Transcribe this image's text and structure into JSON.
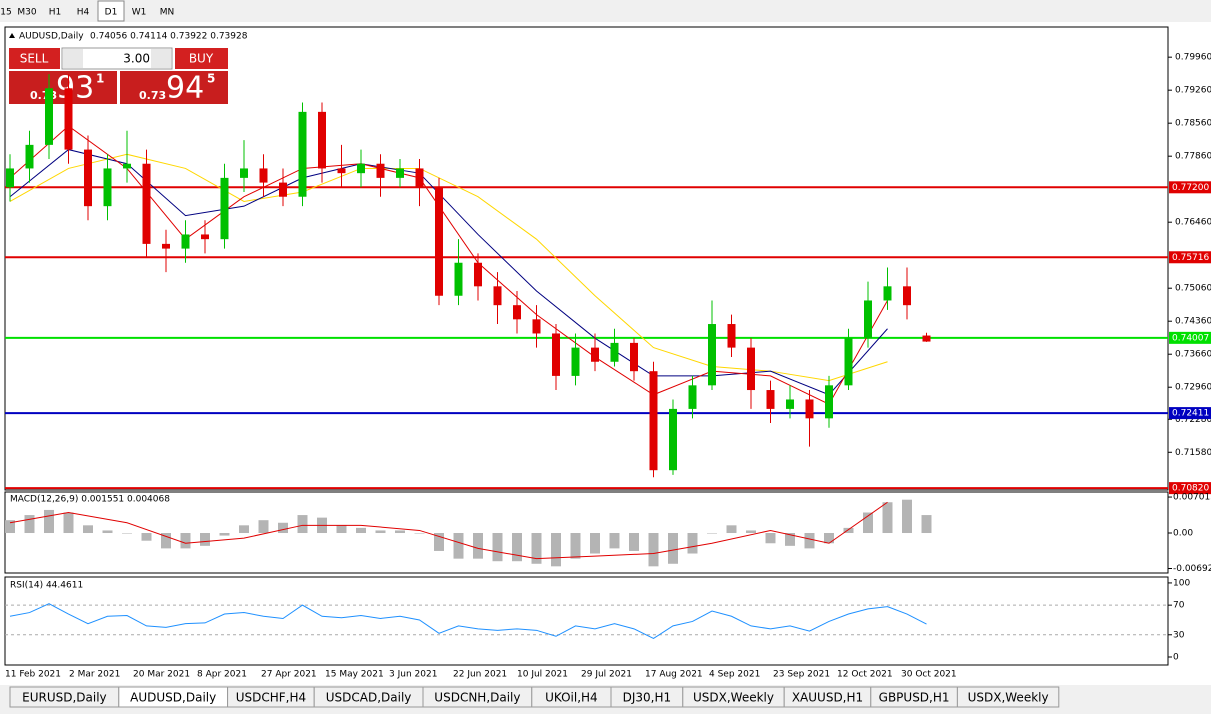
{
  "toolbar": {
    "timeframes": [
      "15",
      "M30",
      "H1",
      "H4",
      "D1",
      "W1",
      "MN"
    ],
    "active_timeframe": 4
  },
  "trade_panel": {
    "sell": "SELL",
    "buy": "BUY",
    "volume": "3.00",
    "bid": {
      "prefix": "0.73",
      "big": "93",
      "small": "1"
    },
    "ask": {
      "prefix": "0.73",
      "big": "94",
      "small": "5"
    }
  },
  "chart_data": {
    "type": "candlestick",
    "symbol": "AUDUSD,Daily",
    "ohlc_text": "0.74056 0.74114 0.73922 0.73928",
    "open": [
      0.772,
      0.776,
      0.781,
      0.793,
      0.78,
      0.768,
      0.776,
      0.777,
      0.76,
      0.759,
      0.762,
      0.761,
      0.774,
      0.776,
      0.773,
      0.77,
      0.788,
      0.776,
      0.775,
      0.777,
      0.774,
      0.776,
      0.772,
      0.749,
      0.756,
      0.751,
      0.747,
      0.744,
      0.741,
      0.732,
      0.738,
      0.735,
      0.739,
      0.733,
      0.712,
      0.725,
      0.73,
      0.743,
      0.738,
      0.729,
      0.725,
      0.727,
      0.723,
      0.73,
      0.74,
      0.748,
      0.751,
      0.74056
    ],
    "high": [
      0.779,
      0.784,
      0.796,
      0.796,
      0.783,
      0.779,
      0.784,
      0.78,
      0.763,
      0.765,
      0.765,
      0.777,
      0.782,
      0.779,
      0.776,
      0.79,
      0.79,
      0.781,
      0.78,
      0.779,
      0.778,
      0.778,
      0.774,
      0.761,
      0.758,
      0.754,
      0.75,
      0.747,
      0.743,
      0.741,
      0.741,
      0.742,
      0.74,
      0.735,
      0.727,
      0.732,
      0.748,
      0.745,
      0.74,
      0.731,
      0.73,
      0.729,
      0.732,
      0.742,
      0.752,
      0.755,
      0.755,
      0.74114
    ],
    "low": [
      0.769,
      0.773,
      0.778,
      0.777,
      0.765,
      0.765,
      0.773,
      0.757,
      0.754,
      0.756,
      0.758,
      0.759,
      0.771,
      0.77,
      0.768,
      0.768,
      0.773,
      0.772,
      0.772,
      0.77,
      0.772,
      0.768,
      0.747,
      0.747,
      0.748,
      0.743,
      0.741,
      0.738,
      0.729,
      0.73,
      0.733,
      0.734,
      0.731,
      0.7105,
      0.711,
      0.723,
      0.729,
      0.736,
      0.725,
      0.722,
      0.723,
      0.717,
      0.721,
      0.729,
      0.738,
      0.746,
      0.744,
      0.73922
    ],
    "close": [
      0.776,
      0.781,
      0.793,
      0.78,
      0.768,
      0.776,
      0.777,
      0.76,
      0.759,
      0.762,
      0.761,
      0.774,
      0.776,
      0.773,
      0.77,
      0.788,
      0.776,
      0.775,
      0.777,
      0.774,
      0.776,
      0.772,
      0.749,
      0.756,
      0.751,
      0.747,
      0.744,
      0.741,
      0.732,
      0.738,
      0.735,
      0.739,
      0.733,
      0.712,
      0.725,
      0.73,
      0.743,
      0.738,
      0.729,
      0.725,
      0.727,
      0.723,
      0.73,
      0.74,
      0.748,
      0.751,
      0.747,
      0.73928
    ],
    "up_color": "#00c000",
    "down_color": "#e00000",
    "ylim": [
      0.7078,
      0.806
    ],
    "yticks": [
      {
        "value": 0.7996,
        "label": "0.79960"
      },
      {
        "value": 0.7926,
        "label": "0.79260"
      },
      {
        "value": 0.7856,
        "label": "0.78560"
      },
      {
        "value": 0.7786,
        "label": "0.77860"
      },
      {
        "value": 0.7646,
        "label": "0.76460"
      },
      {
        "value": 0.7506,
        "label": "0.75060"
      },
      {
        "value": 0.7436,
        "label": "0.74360"
      },
      {
        "value": 0.7366,
        "label": "0.73660"
      },
      {
        "value": 0.7296,
        "label": "0.72960"
      },
      {
        "value": 0.7228,
        "label": "0.72280"
      },
      {
        "value": 0.7158,
        "label": "0.71580"
      }
    ],
    "ma_index": [
      0,
      3,
      6,
      9,
      12,
      15,
      18,
      21,
      24,
      27,
      30,
      33,
      36,
      39,
      42,
      45
    ],
    "moving_averages": [
      {
        "color": "#ffd700",
        "values": [
          0.769,
          0.776,
          0.779,
          0.776,
          0.769,
          0.771,
          0.776,
          0.776,
          0.77,
          0.761,
          0.749,
          0.738,
          0.734,
          0.733,
          0.731,
          0.735
        ]
      },
      {
        "color": "#000080",
        "values": [
          0.77,
          0.78,
          0.777,
          0.766,
          0.768,
          0.774,
          0.777,
          0.775,
          0.762,
          0.75,
          0.74,
          0.732,
          0.732,
          0.733,
          0.728,
          0.742
        ]
      },
      {
        "color": "#e00000",
        "values": [
          0.774,
          0.785,
          0.776,
          0.761,
          0.77,
          0.776,
          0.777,
          0.774,
          0.756,
          0.745,
          0.736,
          0.728,
          0.733,
          0.732,
          0.726,
          0.748
        ]
      }
    ],
    "levels": [
      {
        "value": 0.772,
        "label": "0.77200",
        "color": "#e00000"
      },
      {
        "value": 0.75716,
        "label": "0.75716",
        "color": "#e00000"
      },
      {
        "value": 0.74007,
        "label": "0.74007",
        "color": "#00e000"
      },
      {
        "value": 0.72411,
        "label": "0.72411",
        "color": "#0000c0"
      },
      {
        "value": 0.7082,
        "label": "0.70820",
        "color": "#e00000"
      }
    ],
    "date_labels": [
      "11 Feb 2021",
      "2 Mar 2021",
      "20 Mar 2021",
      "8 Apr 2021",
      "27 Apr 2021",
      "15 May 2021",
      "3 Jun 2021",
      "22 Jun 2021",
      "10 Jul 2021",
      "29 Jul 2021",
      "17 Aug 2021",
      "4 Sep 2021",
      "23 Sep 2021",
      "12 Oct 2021",
      "30 Oct 2021"
    ],
    "macd": {
      "title": "MACD(12,26,9) 0.001551 0.004068",
      "ylim": [
        -0.0078,
        0.008
      ],
      "yticks": [
        0.007015,
        {
          "value": 0,
          "label": "0.00"
        },
        -0.006923
      ],
      "hist_color": "#b4b4b4",
      "signal_color": "#e00000",
      "histogram": [
        0.0025,
        0.0035,
        0.0045,
        0.004,
        0.0015,
        0.0005,
        0.0,
        -0.0015,
        -0.003,
        -0.003,
        -0.0025,
        -0.0005,
        0.0015,
        0.0025,
        0.002,
        0.0035,
        0.003,
        0.0015,
        0.001,
        0.0005,
        0.0005,
        0.0,
        -0.0035,
        -0.005,
        -0.005,
        -0.0055,
        -0.0055,
        -0.006,
        -0.0065,
        -0.005,
        -0.004,
        -0.003,
        -0.0035,
        -0.0065,
        -0.006,
        -0.004,
        0.0,
        0.0015,
        0.0005,
        -0.002,
        -0.0025,
        -0.003,
        -0.002,
        0.001,
        0.004,
        0.006,
        0.0065,
        0.0035
      ],
      "signal": [
        0.002,
        0.004,
        0.002,
        -0.002,
        -0.001,
        0.0015,
        0.0015,
        0.0005,
        -0.003,
        -0.005,
        -0.0045,
        -0.004,
        -0.002,
        0.0005,
        -0.002,
        0.006
      ]
    },
    "rsi": {
      "title": "RSI(14) 44.4611",
      "ylim": [
        -10.8,
        108
      ],
      "yticks": [
        100,
        70,
        30,
        0
      ],
      "levels": [
        70,
        30
      ],
      "color": "#1e90ff",
      "values": [
        55,
        60,
        72,
        58,
        45,
        55,
        56,
        42,
        40,
        45,
        46,
        58,
        60,
        55,
        52,
        70,
        55,
        53,
        56,
        52,
        55,
        50,
        32,
        42,
        38,
        36,
        38,
        36,
        28,
        42,
        38,
        45,
        38,
        25,
        42,
        48,
        62,
        55,
        42,
        38,
        42,
        35,
        48,
        58,
        65,
        68,
        58,
        44.4611
      ]
    }
  },
  "tabs": {
    "items": [
      "EURUSD,Daily",
      "AUDUSD,Daily",
      "USDCHF,H4",
      "USDCAD,Daily",
      "USDCNH,Daily",
      "UKOil,H4",
      "DJ30,H1",
      "USDX,Weekly",
      "XAUUSD,H1",
      "GBPUSD,H1",
      "USDX,Weekly"
    ],
    "active": 1
  }
}
